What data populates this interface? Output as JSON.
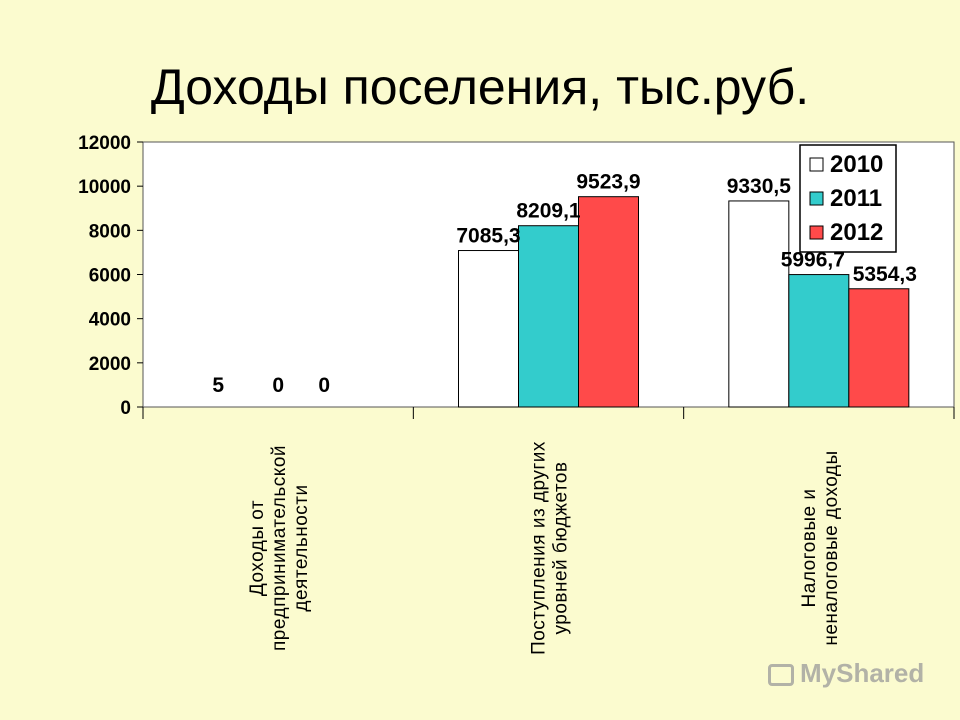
{
  "title": "Доходы поселения, тыс.руб.",
  "watermark": "MyShared",
  "colors": {
    "background": "#fbfbcf",
    "s2010": "#ffffff",
    "s2011": "#33cccc",
    "s2012": "#ff4a4a"
  },
  "chart_data": {
    "type": "bar",
    "title": "Доходы поселения, тыс.руб.",
    "categories": [
      [
        "Доходы от",
        "предпринимательской",
        "деятельности"
      ],
      [
        "Поступления из других",
        "уровней бюджетов"
      ],
      [
        "Налоговые и",
        "неналоговые доходы"
      ]
    ],
    "series": [
      {
        "name": "2010",
        "values": [
          5,
          7085.3,
          9330.5
        ],
        "labels": [
          "5",
          "7085,3",
          "9330,5"
        ],
        "color": "#ffffff"
      },
      {
        "name": "2011",
        "values": [
          0,
          8209.1,
          5996.7
        ],
        "labels": [
          "0",
          "8209,1",
          "5996,7"
        ],
        "color": "#33cccc"
      },
      {
        "name": "2012",
        "values": [
          0,
          9523.9,
          5354.3
        ],
        "labels": [
          "0",
          "9523,9",
          "5354,3"
        ],
        "color": "#ff4a4a"
      }
    ],
    "ylim": [
      0,
      12000
    ],
    "yticks": [
      0,
      2000,
      4000,
      6000,
      8000,
      10000,
      12000
    ],
    "grid": false,
    "legend_position": "top-right"
  }
}
